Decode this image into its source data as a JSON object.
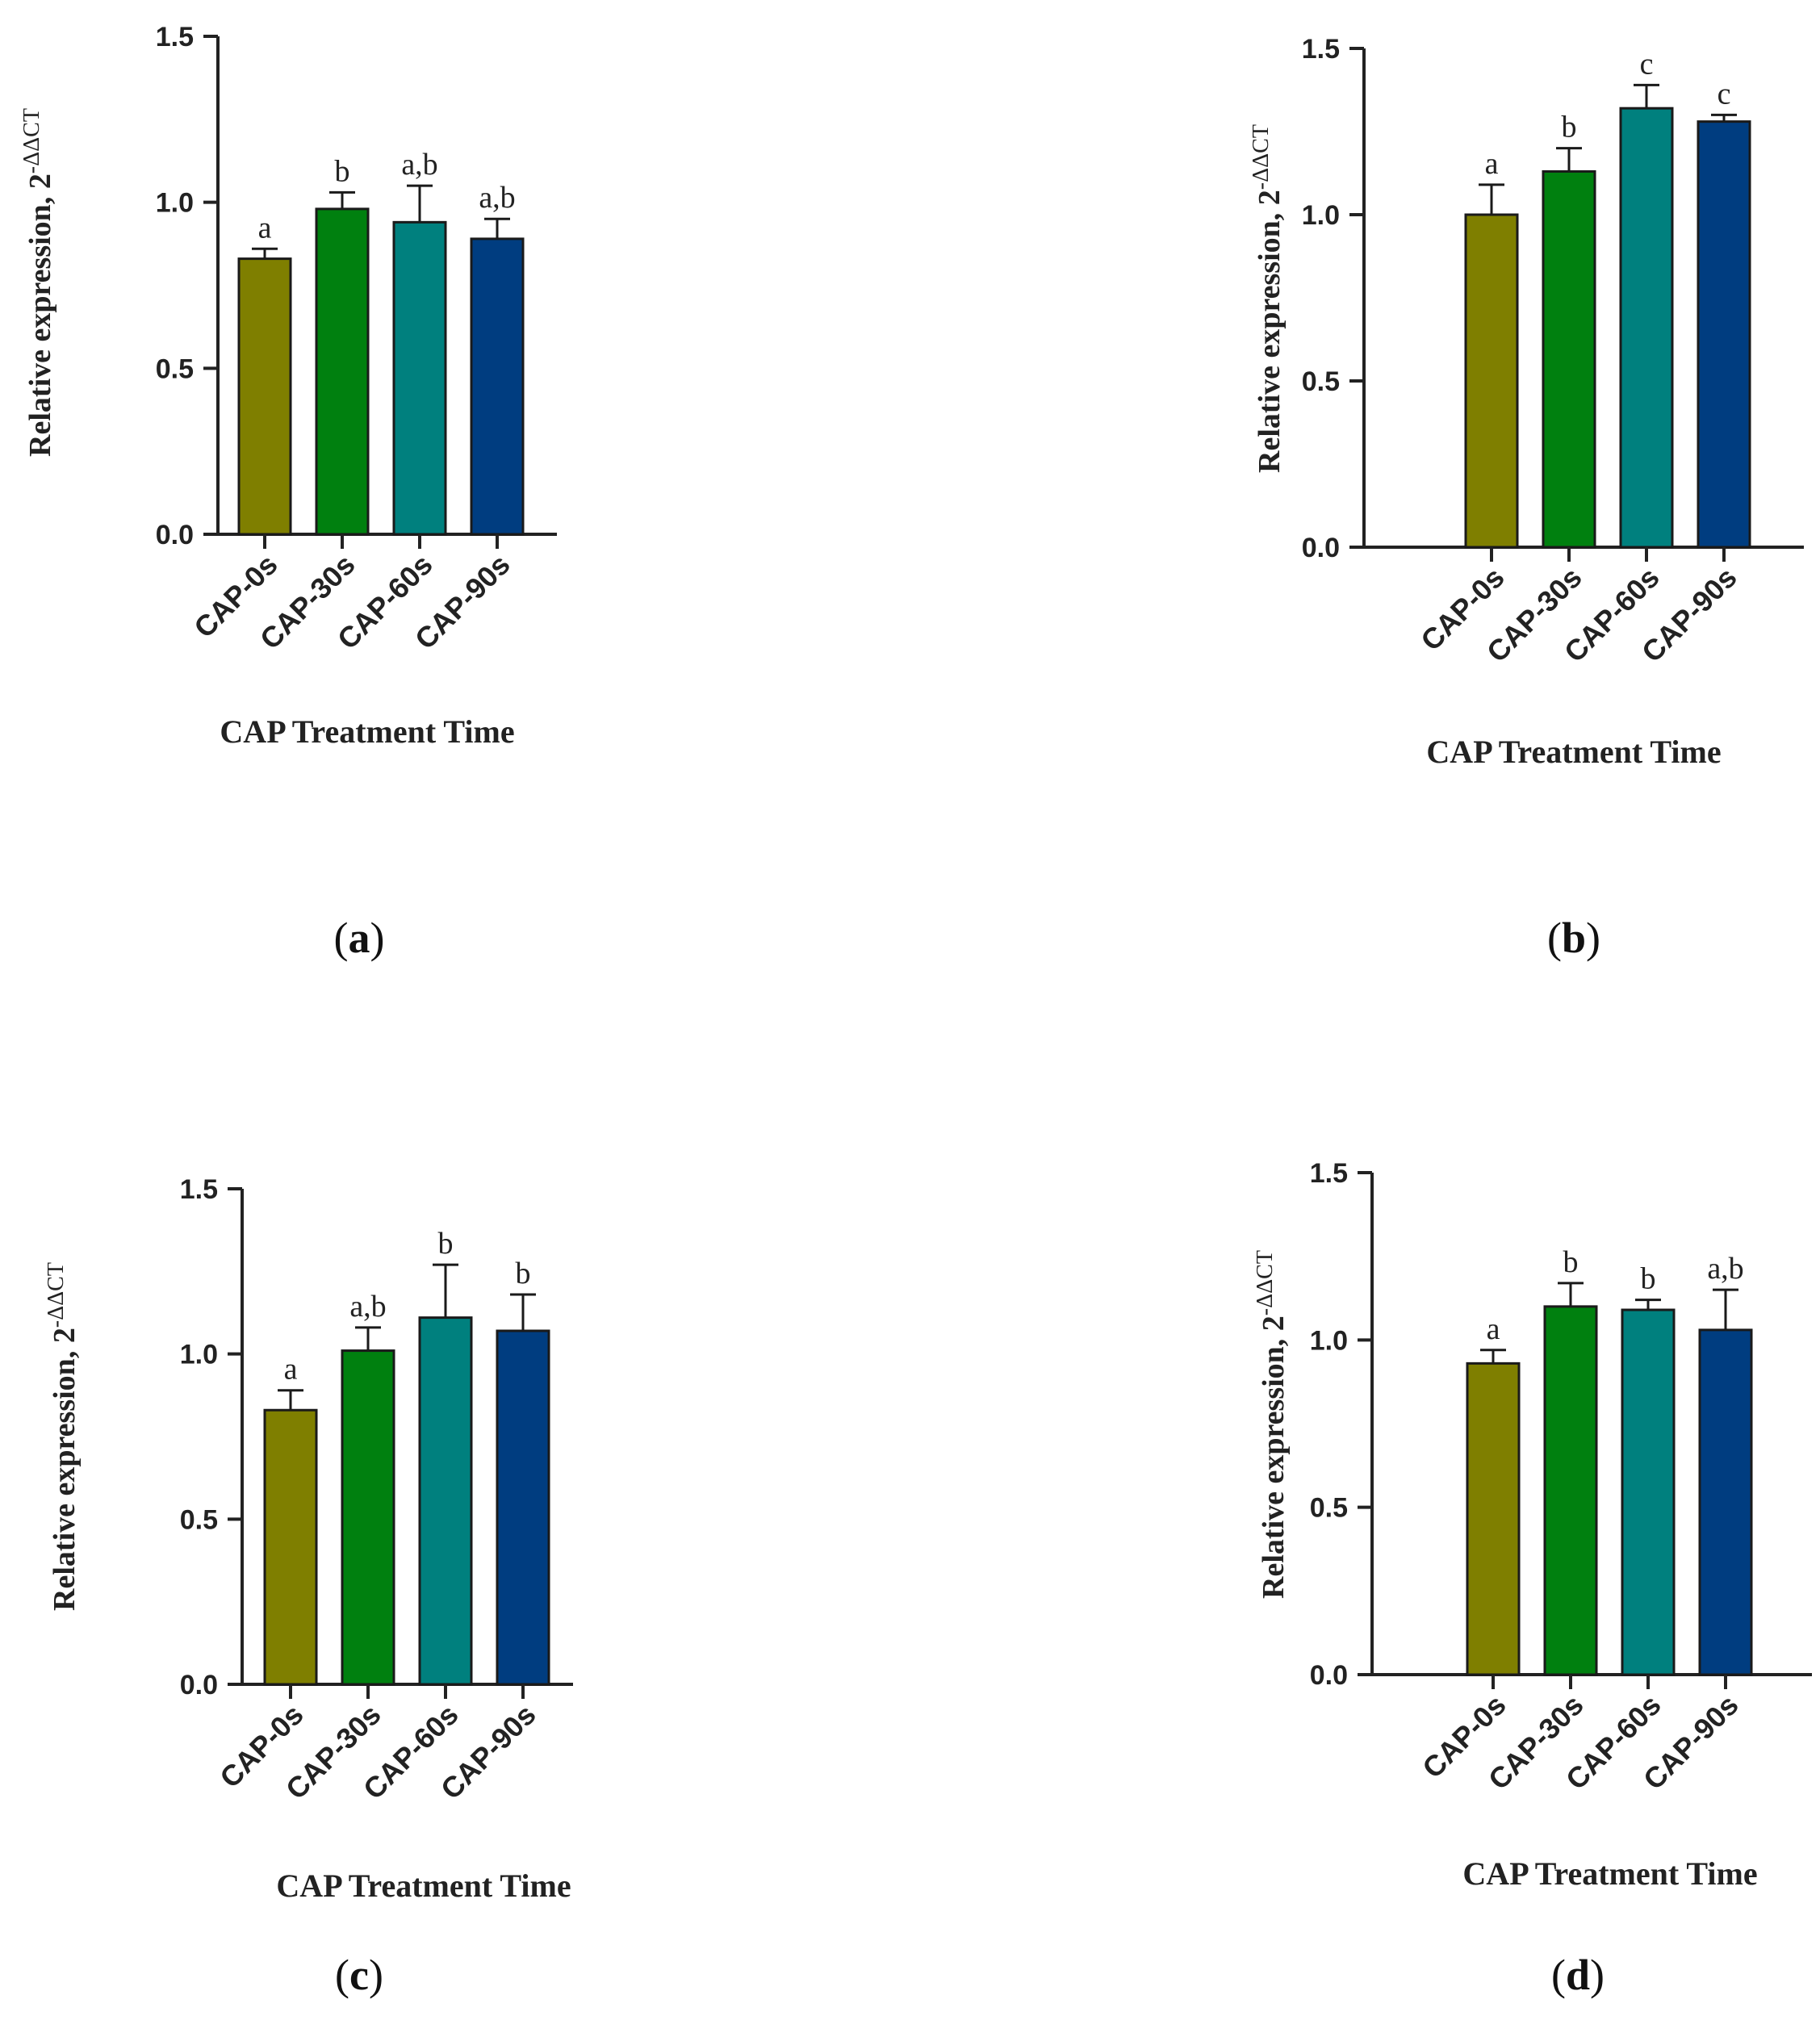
{
  "colors": {
    "CAP-0s": "#7f7f00",
    "CAP-30s": "#00800f",
    "CAP-60s": "#00807e",
    "CAP-90s": "#003d80",
    "axis": "#222222"
  },
  "chart_data": [
    {
      "panel": "a",
      "type": "bar",
      "categories": [
        "CAP-0s",
        "CAP-30s",
        "CAP-60s",
        "CAP-90s"
      ],
      "values": [
        0.83,
        0.98,
        0.94,
        0.89
      ],
      "error_upper": [
        0.86,
        1.03,
        1.05,
        0.95
      ],
      "significance": [
        "a",
        "b",
        "a,b",
        "a,b"
      ],
      "ylim": [
        0,
        1.5
      ],
      "yticks": [
        "0.0",
        "0.5",
        "1.0",
        "1.5"
      ],
      "ytick_values": [
        0,
        0.5,
        1.0,
        1.5
      ],
      "ylabel_main": "Relative expression, 2",
      "ylabel_sup": "-ΔΔCT",
      "xlabel": "CAP Treatment Time",
      "label_open": "(",
      "label_letter": "a",
      "label_close": ")"
    },
    {
      "panel": "b",
      "type": "bar",
      "categories": [
        "CAP-0s",
        "CAP-30s",
        "CAP-60s",
        "CAP-90s"
      ],
      "values": [
        1.0,
        1.13,
        1.32,
        1.28
      ],
      "error_upper": [
        1.09,
        1.2,
        1.39,
        1.3
      ],
      "significance": [
        "a",
        "b",
        "c",
        "c"
      ],
      "ylim": [
        0,
        1.5
      ],
      "yticks": [
        "0.0",
        "0.5",
        "1.0",
        "1.5"
      ],
      "ytick_values": [
        0,
        0.5,
        1.0,
        1.5
      ],
      "ylabel_main": "Relative expression, 2",
      "ylabel_sup": "-ΔΔCT",
      "xlabel": "CAP Treatment Time",
      "label_open": "(",
      "label_letter": "b",
      "label_close": ")"
    },
    {
      "panel": "c",
      "type": "bar",
      "categories": [
        "CAP-0s",
        "CAP-30s",
        "CAP-60s",
        "CAP-90s"
      ],
      "values": [
        0.83,
        1.01,
        1.11,
        1.07
      ],
      "error_upper": [
        0.89,
        1.08,
        1.27,
        1.18
      ],
      "significance": [
        "a",
        "a,b",
        "b",
        "b"
      ],
      "ylim": [
        0,
        1.5
      ],
      "yticks": [
        "0.0",
        "0.5",
        "1.0",
        "1.5"
      ],
      "ytick_values": [
        0,
        0.5,
        1.0,
        1.5
      ],
      "ylabel_main": "Relative expression, 2",
      "ylabel_sup": "-ΔΔCT",
      "xlabel": "CAP Treatment Time",
      "label_open": "(",
      "label_letter": "c",
      "label_close": ")"
    },
    {
      "panel": "d",
      "type": "bar",
      "categories": [
        "CAP-0s",
        "CAP-30s",
        "CAP-60s",
        "CAP-90s"
      ],
      "values": [
        0.93,
        1.1,
        1.09,
        1.03
      ],
      "error_upper": [
        0.97,
        1.17,
        1.12,
        1.15
      ],
      "significance": [
        "a",
        "b",
        "b",
        "a,b"
      ],
      "ylim": [
        0,
        1.5
      ],
      "yticks": [
        "0.0",
        "0.5",
        "1.0",
        "1.5"
      ],
      "ytick_values": [
        0,
        0.5,
        1.0,
        1.5
      ],
      "ylabel_main": "Relative expression, 2",
      "ylabel_sup": "-ΔΔCT",
      "xlabel": "CAP Treatment Time",
      "label_open": "(",
      "label_letter": "d",
      "label_close": ")"
    }
  ]
}
